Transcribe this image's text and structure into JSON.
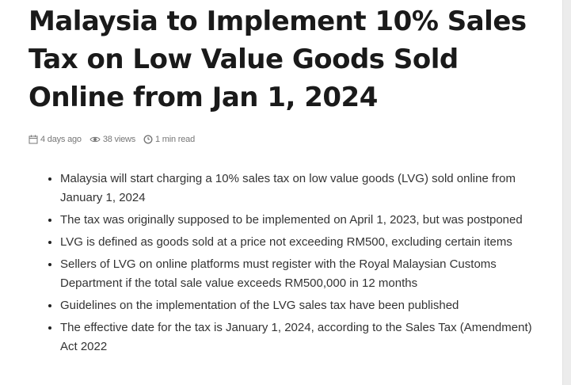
{
  "article": {
    "title": "Malaysia to Implement 10% Sales Tax on Low Value Goods Sold Online from Jan 1, 2024",
    "meta": {
      "date": "4 days ago",
      "views": "38 views",
      "read_time": "1 min read"
    },
    "bullets": [
      "Malaysia will start charging a 10% sales tax on low value goods (LVG) sold online from January 1, 2024",
      "The tax was originally supposed to be implemented on April 1, 2023, but was postponed",
      "LVG is defined as goods sold at a price not exceeding RM500, excluding certain items",
      "Sellers of LVG on online platforms must register with the Royal Malaysian Customs Department if the total sale value exceeds RM500,000 in 12 months",
      "Guidelines on the implementation of the LVG sales tax have been published",
      "The effective date for the tax is January 1, 2024, according to the Sales Tax (Amendment) Act 2022"
    ]
  },
  "icons": {
    "date": "calendar-icon",
    "views": "eye-icon",
    "read_time": "clock-icon"
  }
}
